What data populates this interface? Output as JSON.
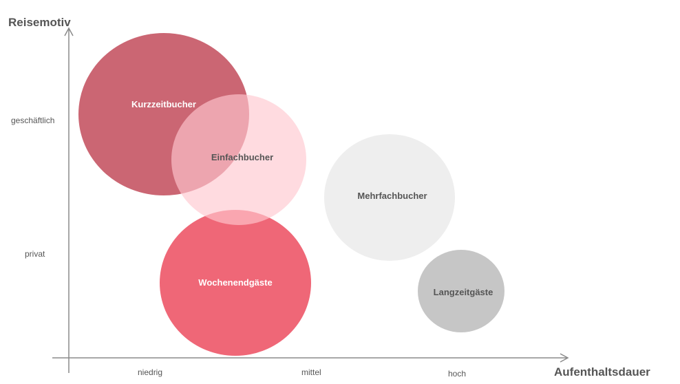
{
  "chart_data": {
    "type": "bubble",
    "ylabel": "Reisemotiv",
    "xlabel": "Aufenthaltsdauer",
    "x_ticks": [
      "niedrig",
      "mittel",
      "hoch"
    ],
    "y_ticks": [
      "geschäftlich",
      "privat"
    ],
    "bubbles": [
      {
        "label": "Kurzzeitbucher",
        "color": "#c85e6c",
        "opacity": 0.95,
        "text_color": "#ffffff"
      },
      {
        "label": "Einfachbucher",
        "color": "#ffc8d0",
        "opacity": 0.65,
        "text_color": "#555555"
      },
      {
        "label": "Mehrfachbucher",
        "color": "#eeeeee",
        "opacity": 1,
        "text_color": "#555555"
      },
      {
        "label": "Wochenendgäste",
        "color": "#ef6777",
        "opacity": 1,
        "text_color": "#ffffff"
      },
      {
        "label": "Langzeitgäste",
        "color": "#c6c6c6",
        "opacity": 1,
        "text_color": "#555555"
      }
    ]
  }
}
